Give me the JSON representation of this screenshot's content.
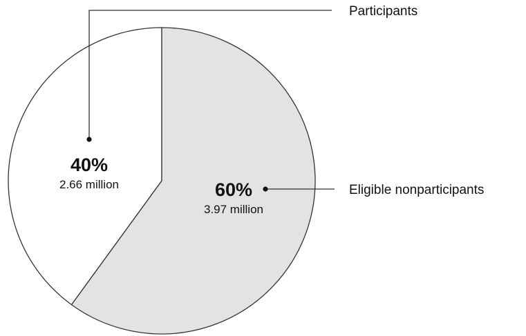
{
  "chart_data": {
    "type": "pie",
    "slices": [
      {
        "name": "Participants",
        "percent": 40,
        "percent_label": "40%",
        "value_label": "2.66 million",
        "value_millions": 2.66,
        "fill": "#ffffff"
      },
      {
        "name": "Eligible nonparticipants",
        "percent": 60,
        "percent_label": "60%",
        "value_label": "3.97 million",
        "value_millions": 3.97,
        "fill": "#e3e3e5"
      }
    ],
    "colors": {
      "outline": "#333333",
      "text": "#111111"
    }
  }
}
